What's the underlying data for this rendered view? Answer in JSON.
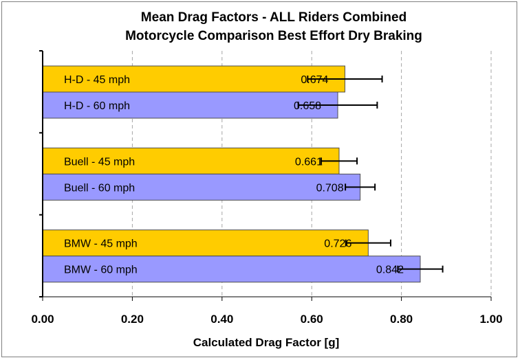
{
  "chart_data": {
    "type": "bar",
    "orientation": "horizontal",
    "title": "Mean Drag Factors - ALL Riders Combined",
    "subtitle": "Motorcycle Comparison Best Effort Dry Braking",
    "xlabel": "Calculated Drag Factor [g]",
    "ylabel": "",
    "xlim": [
      0,
      1
    ],
    "x_ticks": [
      "0.00",
      "0.20",
      "0.40",
      "0.60",
      "0.80",
      "1.00"
    ],
    "grid": "vertical-dashed",
    "legend": "none",
    "groups": [
      {
        "bars": [
          {
            "label": "H-D - 45 mph",
            "value": 0.674,
            "value_label": "0.674",
            "error_minus": 0.083,
            "error_plus": 0.083,
            "color": "#ffcc00"
          },
          {
            "label": "H-D - 60 mph",
            "value": 0.658,
            "value_label": "0.658",
            "error_minus": 0.088,
            "error_plus": 0.088,
            "color": "#9999ff"
          }
        ]
      },
      {
        "bars": [
          {
            "label": "Buell - 45 mph",
            "value": 0.661,
            "value_label": "0.661",
            "error_minus": 0.04,
            "error_plus": 0.04,
            "color": "#ffcc00"
          },
          {
            "label": "Buell - 60 mph",
            "value": 0.708,
            "value_label": "0.708",
            "error_minus": 0.033,
            "error_plus": 0.033,
            "color": "#9999ff"
          }
        ]
      },
      {
        "bars": [
          {
            "label": "BMW - 45 mph",
            "value": 0.726,
            "value_label": "0.726",
            "error_minus": 0.05,
            "error_plus": 0.05,
            "color": "#ffcc00"
          },
          {
            "label": "BMW - 60 mph",
            "value": 0.842,
            "value_label": "0.842",
            "error_minus": 0.05,
            "error_plus": 0.05,
            "color": "#9999ff"
          }
        ]
      }
    ]
  }
}
